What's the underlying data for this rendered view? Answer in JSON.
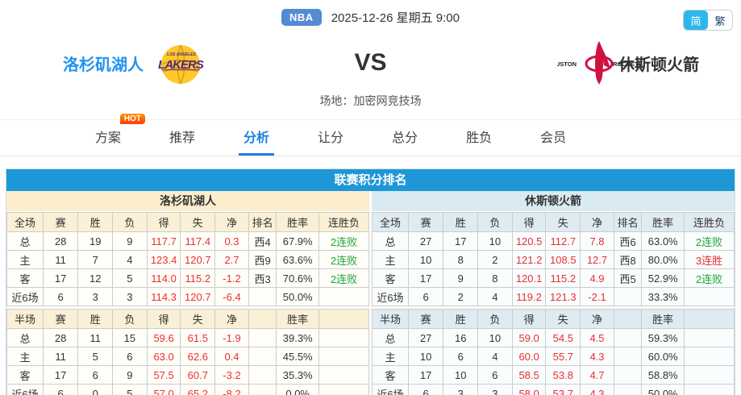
{
  "header": {
    "league_badge": "NBA",
    "datetime": "2025-12-26 星期五 9:00",
    "lang_simplified": "简",
    "lang_traditional": "繁"
  },
  "match": {
    "home_team": "洛杉矶湖人",
    "away_team": "休斯顿火箭",
    "vs_label": "VS",
    "venue": "场地：加密网竞技场",
    "home_logo": "lakers-logo",
    "away_logo": "rockets-logo"
  },
  "nav": {
    "items": [
      {
        "label": "方案",
        "badge": "HOT",
        "active": false
      },
      {
        "label": "推荐",
        "active": false
      },
      {
        "label": "分析",
        "active": true
      },
      {
        "label": "让分",
        "active": false
      },
      {
        "label": "总分",
        "active": false
      },
      {
        "label": "胜负",
        "active": false
      },
      {
        "label": "会员",
        "active": false
      }
    ]
  },
  "standings": {
    "title": "联赛积分排名",
    "colors": {
      "accent_blue": "#1d97d6",
      "value_red": "#e93030",
      "streak_green": "#1fa537",
      "home_band": "#fcedcd",
      "away_band": "#d9eaf2"
    },
    "tables": [
      {
        "team": "洛杉矶湖人",
        "theme": "home",
        "sections": [
          {
            "headers": [
              "全场",
              "赛",
              "胜",
              "负",
              "得",
              "失",
              "净",
              "排名",
              "胜率",
              "连胜负"
            ],
            "rows": [
              {
                "cells": [
                  "总",
                  "28",
                  "19",
                  "9",
                  "117.7",
                  "117.4",
                  "0.3",
                  "西4",
                  "67.9%",
                  "2连败"
                ],
                "streak_color": "green"
              },
              {
                "cells": [
                  "主",
                  "11",
                  "7",
                  "4",
                  "123.4",
                  "120.7",
                  "2.7",
                  "西9",
                  "63.6%",
                  "2连败"
                ],
                "streak_color": "green"
              },
              {
                "cells": [
                  "客",
                  "17",
                  "12",
                  "5",
                  "114.0",
                  "115.2",
                  "-1.2",
                  "西3",
                  "70.6%",
                  "2连败"
                ],
                "streak_color": "green"
              },
              {
                "cells": [
                  "近6场",
                  "6",
                  "3",
                  "3",
                  "114.3",
                  "120.7",
                  "-6.4",
                  "",
                  "50.0%",
                  ""
                ],
                "streak_color": ""
              }
            ]
          },
          {
            "headers": [
              "半场",
              "赛",
              "胜",
              "负",
              "得",
              "失",
              "净",
              "",
              "胜率",
              ""
            ],
            "rows": [
              {
                "cells": [
                  "总",
                  "28",
                  "11",
                  "15",
                  "59.6",
                  "61.5",
                  "-1.9",
                  "",
                  "39.3%",
                  ""
                ],
                "streak_color": ""
              },
              {
                "cells": [
                  "主",
                  "11",
                  "5",
                  "6",
                  "63.0",
                  "62.6",
                  "0.4",
                  "",
                  "45.5%",
                  ""
                ],
                "streak_color": ""
              },
              {
                "cells": [
                  "客",
                  "17",
                  "6",
                  "9",
                  "57.5",
                  "60.7",
                  "-3.2",
                  "",
                  "35.3%",
                  ""
                ],
                "streak_color": ""
              },
              {
                "cells": [
                  "近6场",
                  "6",
                  "0",
                  "5",
                  "57.0",
                  "65.2",
                  "-8.2",
                  "",
                  "0.0%",
                  ""
                ],
                "streak_color": ""
              }
            ]
          }
        ]
      },
      {
        "team": "休斯顿火箭",
        "theme": "away",
        "sections": [
          {
            "headers": [
              "全场",
              "赛",
              "胜",
              "负",
              "得",
              "失",
              "净",
              "排名",
              "胜率",
              "连胜负"
            ],
            "rows": [
              {
                "cells": [
                  "总",
                  "27",
                  "17",
                  "10",
                  "120.5",
                  "112.7",
                  "7.8",
                  "西6",
                  "63.0%",
                  "2连败"
                ],
                "streak_color": "green"
              },
              {
                "cells": [
                  "主",
                  "10",
                  "8",
                  "2",
                  "121.2",
                  "108.5",
                  "12.7",
                  "西8",
                  "80.0%",
                  "3连胜"
                ],
                "streak_color": "red"
              },
              {
                "cells": [
                  "客",
                  "17",
                  "9",
                  "8",
                  "120.1",
                  "115.2",
                  "4.9",
                  "西5",
                  "52.9%",
                  "2连败"
                ],
                "streak_color": "green"
              },
              {
                "cells": [
                  "近6场",
                  "6",
                  "2",
                  "4",
                  "119.2",
                  "121.3",
                  "-2.1",
                  "",
                  "33.3%",
                  ""
                ],
                "streak_color": ""
              }
            ]
          },
          {
            "headers": [
              "半场",
              "赛",
              "胜",
              "负",
              "得",
              "失",
              "净",
              "",
              "胜率",
              ""
            ],
            "rows": [
              {
                "cells": [
                  "总",
                  "27",
                  "16",
                  "10",
                  "59.0",
                  "54.5",
                  "4.5",
                  "",
                  "59.3%",
                  ""
                ],
                "streak_color": ""
              },
              {
                "cells": [
                  "主",
                  "10",
                  "6",
                  "4",
                  "60.0",
                  "55.7",
                  "4.3",
                  "",
                  "60.0%",
                  ""
                ],
                "streak_color": ""
              },
              {
                "cells": [
                  "客",
                  "17",
                  "10",
                  "6",
                  "58.5",
                  "53.8",
                  "4.7",
                  "",
                  "58.8%",
                  ""
                ],
                "streak_color": ""
              },
              {
                "cells": [
                  "近6场",
                  "6",
                  "3",
                  "3",
                  "58.0",
                  "53.7",
                  "4.3",
                  "",
                  "50.0%",
                  ""
                ],
                "streak_color": ""
              }
            ]
          }
        ]
      }
    ]
  }
}
